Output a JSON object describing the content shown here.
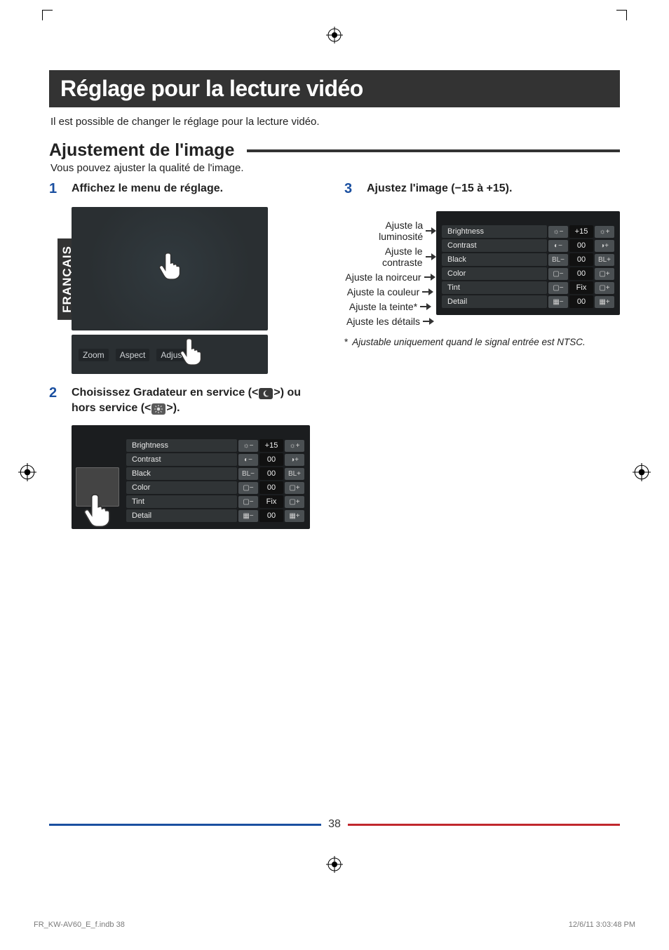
{
  "language_tab": "FRANÇAIS",
  "title": "Réglage pour la lecture vidéo",
  "intro": "Il est possible de changer le réglage pour la lecture vidéo.",
  "subheading": "Ajustement de l'image",
  "subnote": "Vous pouvez ajuster la qualité de l'image.",
  "steps": {
    "s1": {
      "num": "1",
      "text": "Affichez le menu de réglage."
    },
    "s2": {
      "num": "2",
      "text_a": "Choisissez Gradateur en service (<",
      "text_b": ">) ou hors service (<",
      "text_c": ">)."
    },
    "s3": {
      "num": "3",
      "text": "Ajustez l'image (−15 à +15)."
    }
  },
  "tabs": {
    "zoom": "Zoom",
    "aspect": "Aspect",
    "adjust": "Adjust"
  },
  "adjust_panel": {
    "rows": [
      {
        "label": "Brightness",
        "minus": "☼−",
        "val": "+15",
        "plus": "☼+"
      },
      {
        "label": "Contrast",
        "minus": "◐−",
        "val": "00",
        "plus": "◑+"
      },
      {
        "label": "Black",
        "minus": "BL−",
        "val": "00",
        "plus": "BL+"
      },
      {
        "label": "Color",
        "minus": "▢−",
        "val": "00",
        "plus": "▢+"
      },
      {
        "label": "Tint",
        "minus": "▢−",
        "val": "Fix",
        "plus": "▢+"
      },
      {
        "label": "Detail",
        "minus": "▦−",
        "val": "00",
        "plus": "▦+"
      }
    ]
  },
  "pointers": [
    "Ajuste la luminosité",
    "Ajuste le contraste",
    "Ajuste la noirceur",
    "Ajuste la couleur",
    "Ajuste la teinte*",
    "Ajuste les détails"
  ],
  "footnote_marker": "*",
  "footnote": "Ajustable uniquement quand le signal entrée est NTSC.",
  "page_number": "38",
  "footer_left": "FR_KW-AV60_E_f.indb   38",
  "footer_right": "12/6/11   3:03:48 PM",
  "colors": {
    "title_bg": "#333333",
    "step_num": "#1a4fa0",
    "bar_blue": "#1a4fa0",
    "bar_red": "#c0272d",
    "panel_bg": "#1b1d1f",
    "screenshot_bg": "#2a2f32"
  }
}
